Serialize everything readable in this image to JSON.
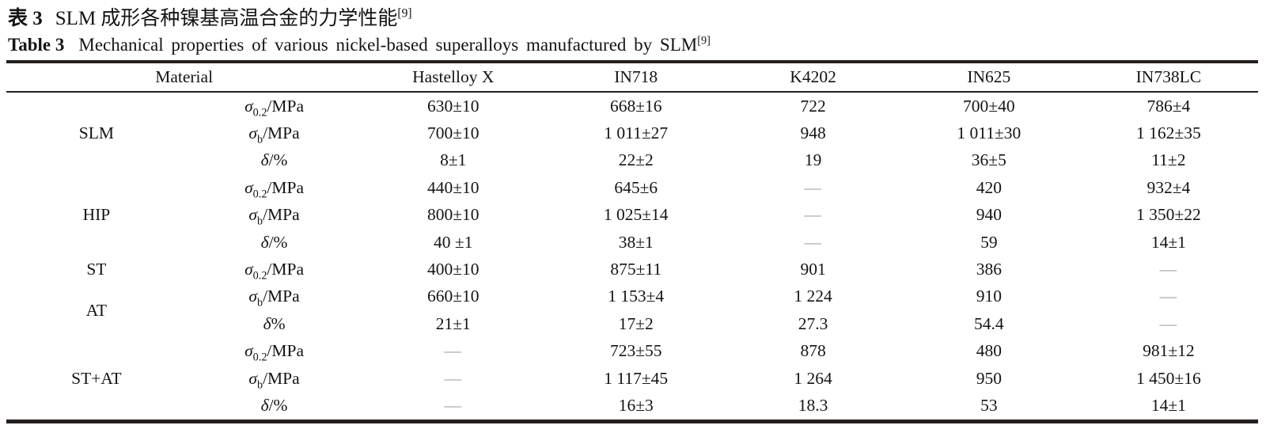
{
  "caption_zh": {
    "label": "表 3",
    "text": "SLM 成形各种镍基高温合金的力学性能",
    "ref": "[9]"
  },
  "caption_en": {
    "label": "Table 3",
    "text": "Mechanical properties of various nickel-based superalloys manufactured by SLM",
    "ref": "[9]"
  },
  "table": {
    "header": {
      "material": "Material",
      "alloys": [
        "Hastelloy X",
        "IN718",
        "K4202",
        "IN625",
        "IN738LC"
      ]
    },
    "groups": [
      {
        "label": "SLM",
        "rows": [
          {
            "prop": {
              "sym": "σ",
              "sub": "0.2",
              "rest": "/MPa"
            },
            "values": [
              "630±10",
              "668±16",
              "722",
              "700±40",
              "786±4"
            ]
          },
          {
            "prop": {
              "sym": "σ",
              "sub": "b",
              "rest": "/MPa"
            },
            "values": [
              "700±10",
              "1 011±27",
              "948",
              "1 011±30",
              "1 162±35"
            ]
          },
          {
            "prop": {
              "sym": "δ",
              "sub": "",
              "rest": "/%"
            },
            "values": [
              "8±1",
              "22±2",
              "19",
              "36±5",
              "11±2"
            ]
          }
        ]
      },
      {
        "label": "HIP",
        "rows": [
          {
            "prop": {
              "sym": "σ",
              "sub": "0.2",
              "rest": "/MPa"
            },
            "values": [
              "440±10",
              "645±6",
              "—",
              "420",
              "932±4"
            ]
          },
          {
            "prop": {
              "sym": "σ",
              "sub": "b",
              "rest": "/MPa"
            },
            "values": [
              "800±10",
              "1 025±14",
              "—",
              "940",
              "1 350±22"
            ]
          },
          {
            "prop": {
              "sym": "δ",
              "sub": "",
              "rest": "/%"
            },
            "values": [
              "40 ±1",
              "38±1",
              "—",
              "59",
              "14±1"
            ]
          }
        ]
      },
      {
        "label": "ST",
        "rows": [
          {
            "prop": {
              "sym": "σ",
              "sub": "0.2",
              "rest": "/MPa"
            },
            "values": [
              "400±10",
              "875±11",
              "901",
              "386",
              "—"
            ]
          }
        ]
      },
      {
        "label": "AT",
        "rows": [
          {
            "prop": {
              "sym": "σ",
              "sub": "b",
              "rest": "/MPa"
            },
            "values": [
              "660±10",
              "1 153±4",
              "1 224",
              "910",
              "—"
            ]
          },
          {
            "prop": {
              "sym": "δ",
              "sub": "",
              "rest": "%"
            },
            "values": [
              "21±1",
              "17±2",
              "27.3",
              "54.4",
              "—"
            ]
          }
        ]
      },
      {
        "label": "ST+AT",
        "rows": [
          {
            "prop": {
              "sym": "σ",
              "sub": "0.2",
              "rest": "/MPa"
            },
            "values": [
              "—",
              "723±55",
              "878",
              "480",
              "981±12"
            ]
          },
          {
            "prop": {
              "sym": "σ",
              "sub": "b",
              "rest": "/MPa"
            },
            "values": [
              "—",
              "1 117±45",
              "1 264",
              "950",
              "1 450±16"
            ]
          },
          {
            "prop": {
              "sym": "δ",
              "sub": "",
              "rest": "/%"
            },
            "values": [
              "—",
              "16±3",
              "18.3",
              "53",
              "14±1"
            ]
          }
        ]
      }
    ]
  }
}
